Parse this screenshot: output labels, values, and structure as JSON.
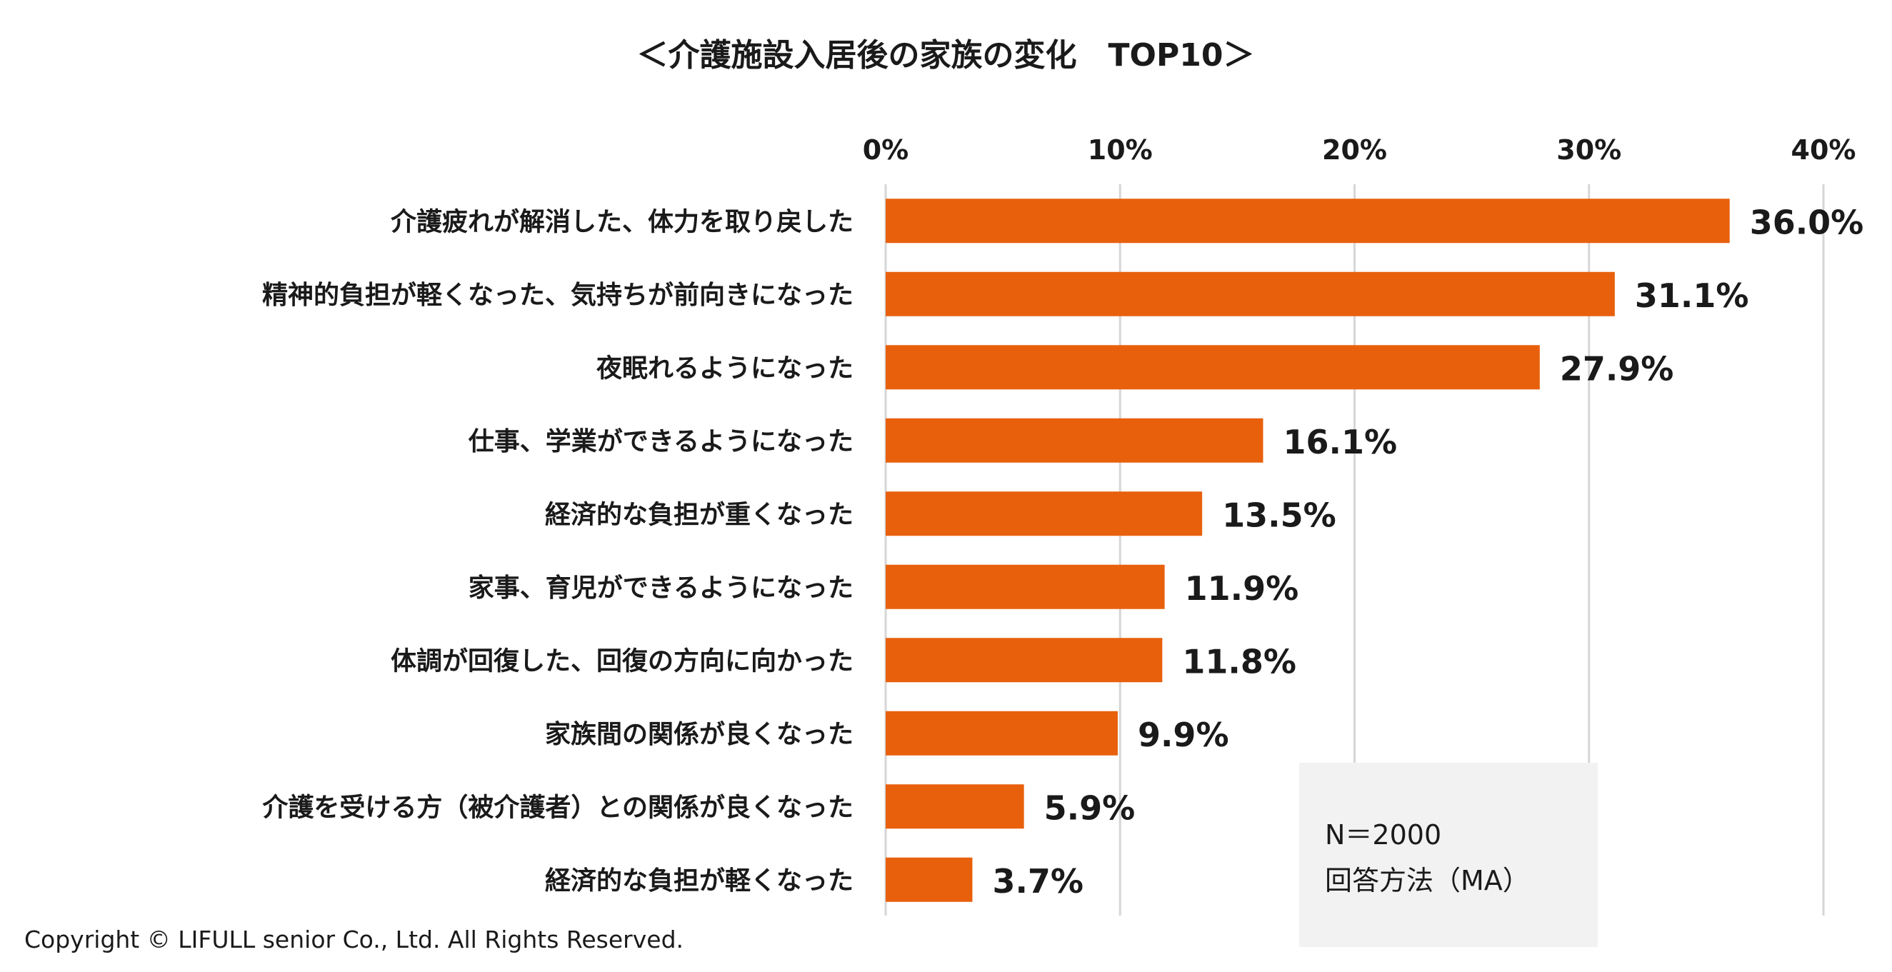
{
  "chart_data": {
    "type": "bar",
    "orientation": "horizontal",
    "title": "＜介護施設入居後の家族の変化　TOP10＞",
    "categories": [
      "介護疲れが解消した、体力を取り戻した",
      "精神的負担が軽くなった、気持ちが前向きになった",
      "夜眠れるようになった",
      "仕事、学業ができるようになった",
      "経済的な負担が重くなった",
      "家事、育児ができるようになった",
      "体調が回復した、回復の方向に向かった",
      "家族間の関係が良くなった",
      "介護を受ける方（被介護者）との関係が良くなった",
      "経済的な負担が軽くなった"
    ],
    "values": [
      36.0,
      31.1,
      27.9,
      16.1,
      13.5,
      11.9,
      11.8,
      9.9,
      5.9,
      3.7
    ],
    "value_labels": [
      "36.0%",
      "31.1%",
      "27.9%",
      "16.1%",
      "13.5%",
      "11.9%",
      "11.8%",
      "9.9%",
      "5.9%",
      "3.7%"
    ],
    "xlim": [
      0,
      40
    ],
    "x_ticks": [
      0,
      10,
      20,
      30,
      40
    ],
    "x_tick_labels": [
      "0%",
      "10%",
      "20%",
      "30%",
      "40%"
    ],
    "axis_position": "top",
    "grid": true,
    "legend": "none",
    "xlabel": "",
    "ylabel": "",
    "bar_color": "#e8600c",
    "grid_color": "#d6d6d6"
  },
  "note": {
    "sample_size": "N＝2000",
    "method": "回答方法（MA）"
  },
  "copyright": "Copyright © LIFULL senior Co., Ltd. All Rights Reserved."
}
